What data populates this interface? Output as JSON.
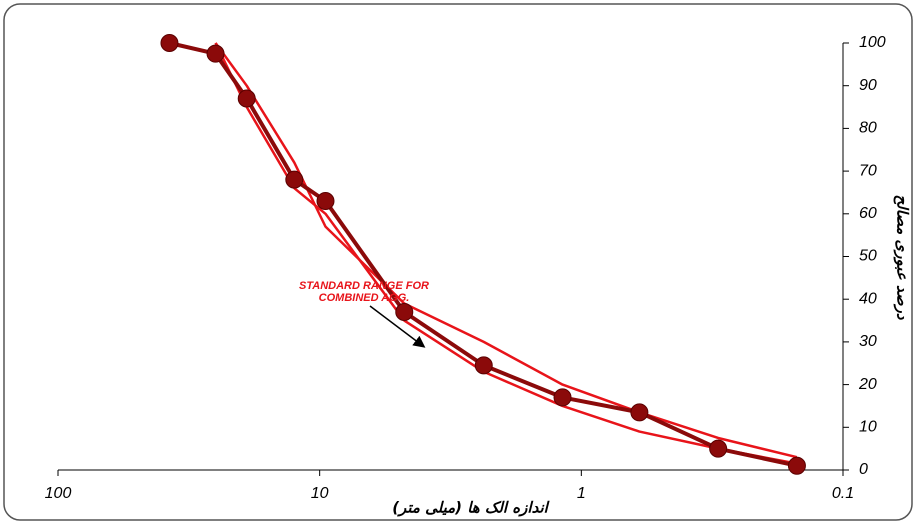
{
  "chart_data": {
    "type": "line",
    "x_label": "اندازه الک ها (میلی متر)",
    "y_label": "درصد عبوری مصالح",
    "annotation": [
      "STANDARD RANGE FOR",
      "COMBINED AGG."
    ],
    "x": [
      37.5,
      25,
      19,
      12.5,
      9.5,
      4.75,
      2.36,
      1.18,
      0.6,
      0.3,
      0.15
    ],
    "xscale": "log",
    "xlim": [
      100,
      0.1
    ],
    "xticks": [
      100,
      10,
      1,
      0.1
    ],
    "ylim": [
      0,
      100
    ],
    "yticks": [
      0,
      10,
      20,
      30,
      40,
      50,
      60,
      70,
      80,
      90,
      100
    ],
    "series": [
      {
        "color": "#e8141a",
        "values": [
          null,
          100,
          90,
          72,
          57,
          39,
          30,
          20,
          13.5,
          7.5,
          3
        ]
      },
      {
        "color": "#e8141a",
        "values": [
          null,
          100,
          85,
          66,
          60,
          35,
          23,
          15,
          9,
          5,
          1.5
        ]
      },
      {
        "color": "#8b0a0a",
        "values": [
          100,
          97.5,
          87,
          68,
          63,
          37,
          24.5,
          17,
          13.5,
          5,
          1
        ],
        "markers": true
      }
    ]
  }
}
